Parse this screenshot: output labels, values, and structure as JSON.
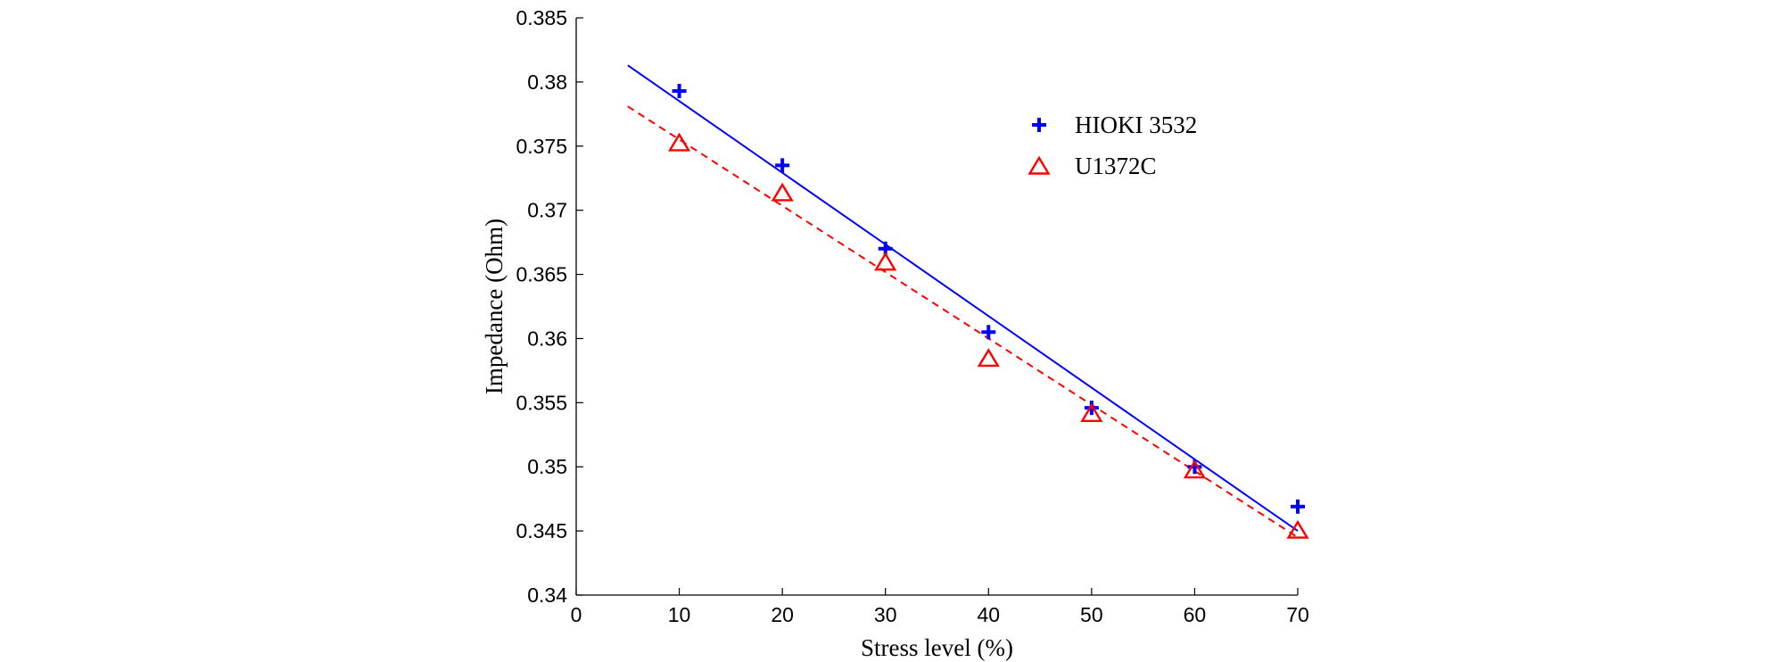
{
  "chart_data": {
    "type": "scatter",
    "title": "",
    "xlabel": "Stress level (%)",
    "ylabel": "Impedance (Ohm)",
    "xlim": [
      0,
      70
    ],
    "ylim": [
      0.34,
      0.385
    ],
    "xticks": [
      "0",
      "10",
      "20",
      "30",
      "40",
      "50",
      "60",
      "70"
    ],
    "yticks": [
      "0.34",
      "0.345",
      "0.35",
      "0.355",
      "0.36",
      "0.365",
      "0.37",
      "0.375",
      "0.38",
      "0.385"
    ],
    "grid": false,
    "legend_position": "top-right",
    "series": [
      {
        "name": "HIOKI 3532",
        "marker": "plus",
        "color": "#0000ff",
        "x": [
          10,
          20,
          30,
          40,
          50,
          60,
          70
        ],
        "y": [
          0.3793,
          0.3735,
          0.367,
          0.3605,
          0.3546,
          0.35,
          0.3469
        ],
        "fit": {
          "style": "solid",
          "x": [
            5,
            70
          ],
          "y": [
            0.3813,
            0.345
          ]
        }
      },
      {
        "name": "U1372C",
        "marker": "triangle",
        "color": "#ff0000",
        "x": [
          10,
          20,
          30,
          40,
          50,
          60,
          70
        ],
        "y": [
          0.3752,
          0.3713,
          0.3659,
          0.3584,
          0.3541,
          0.3497,
          0.345
        ],
        "fit": {
          "style": "dashed",
          "x": [
            5,
            70
          ],
          "y": [
            0.3781,
            0.3445
          ]
        }
      }
    ]
  }
}
